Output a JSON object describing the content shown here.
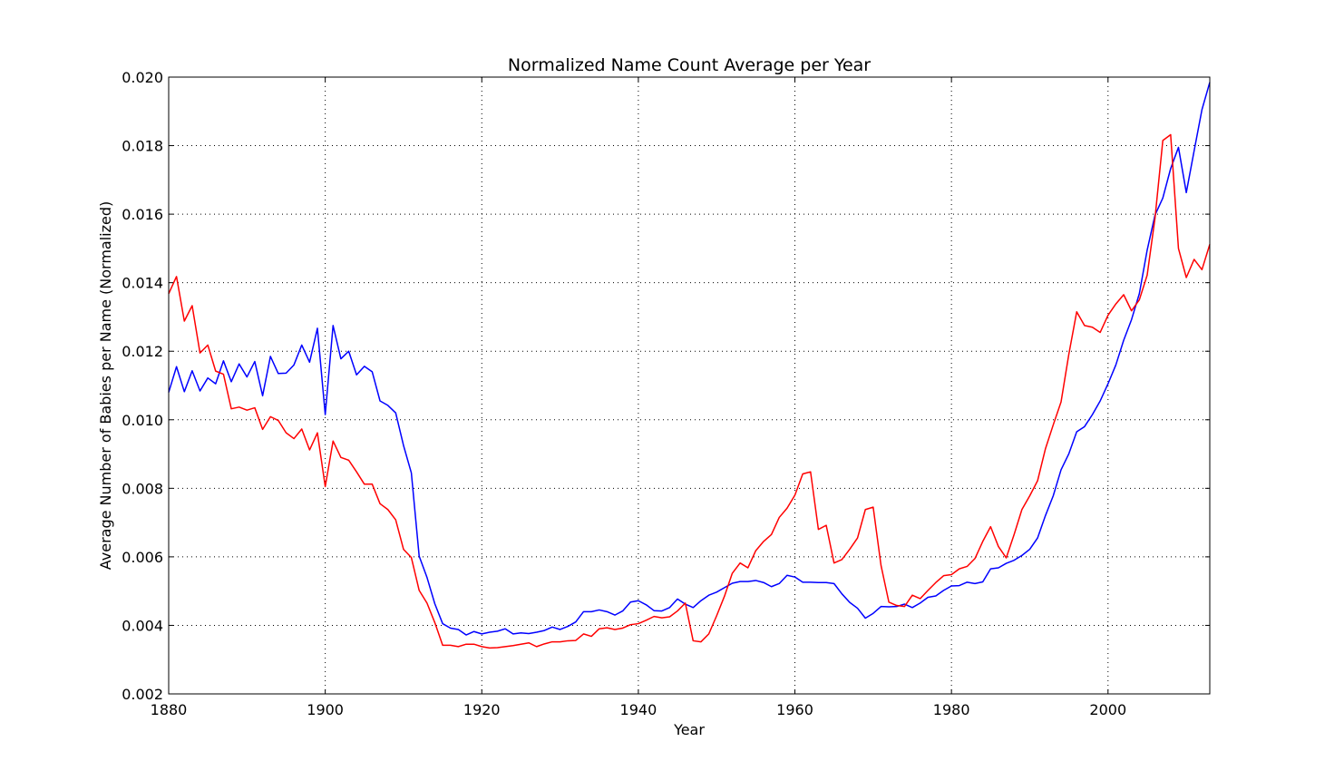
{
  "chart_data": {
    "type": "line",
    "title": "Normalized Name Count Average per Year",
    "xlabel": "Year",
    "ylabel": "Average Number of Babies per Name (Normalized)",
    "xlim": [
      1880,
      2013
    ],
    "ylim": [
      0.002,
      0.02
    ],
    "grid": true,
    "legend": "none",
    "x_ticks": [
      1880,
      1900,
      1920,
      1940,
      1960,
      1980,
      2000
    ],
    "x_tick_labels": [
      "1880",
      "1900",
      "1920",
      "1940",
      "1960",
      "1980",
      "2000"
    ],
    "y_ticks": [
      0.002,
      0.004,
      0.006,
      0.008,
      0.01,
      0.012,
      0.014,
      0.016,
      0.018,
      0.02
    ],
    "y_tick_labels": [
      "0.002",
      "0.004",
      "0.006",
      "0.008",
      "0.010",
      "0.012",
      "0.014",
      "0.016",
      "0.018",
      "0.020"
    ],
    "x": [
      1880,
      1881,
      1882,
      1883,
      1884,
      1885,
      1886,
      1887,
      1888,
      1889,
      1890,
      1891,
      1892,
      1893,
      1894,
      1895,
      1896,
      1897,
      1898,
      1899,
      1900,
      1901,
      1902,
      1903,
      1904,
      1905,
      1906,
      1907,
      1908,
      1909,
      1910,
      1911,
      1912,
      1913,
      1914,
      1915,
      1916,
      1917,
      1918,
      1919,
      1920,
      1921,
      1922,
      1923,
      1924,
      1925,
      1926,
      1927,
      1928,
      1929,
      1930,
      1931,
      1932,
      1933,
      1934,
      1935,
      1936,
      1937,
      1938,
      1939,
      1940,
      1941,
      1942,
      1943,
      1944,
      1945,
      1946,
      1947,
      1948,
      1949,
      1950,
      1951,
      1952,
      1953,
      1954,
      1955,
      1956,
      1957,
      1958,
      1959,
      1960,
      1961,
      1962,
      1963,
      1964,
      1965,
      1966,
      1967,
      1968,
      1969,
      1970,
      1971,
      1972,
      1973,
      1974,
      1975,
      1976,
      1977,
      1978,
      1979,
      1980,
      1981,
      1982,
      1983,
      1984,
      1985,
      1986,
      1987,
      1988,
      1989,
      1990,
      1991,
      1992,
      1993,
      1994,
      1995,
      1996,
      1997,
      1998,
      1999,
      2000,
      2001,
      2002,
      2003,
      2004,
      2005,
      2006,
      2007,
      2008,
      2009,
      2010,
      2011,
      2012,
      2013
    ],
    "series": [
      {
        "color": "#0000ff",
        "values": [
          0.0108,
          0.01155,
          0.01082,
          0.01143,
          0.01084,
          0.01122,
          0.01105,
          0.01172,
          0.01111,
          0.01163,
          0.01125,
          0.0117,
          0.0107,
          0.01185,
          0.01135,
          0.01136,
          0.0116,
          0.01218,
          0.01168,
          0.01267,
          0.01015,
          0.01275,
          0.01178,
          0.012,
          0.01131,
          0.01156,
          0.0114,
          0.01055,
          0.01042,
          0.0102,
          0.00925,
          0.00845,
          0.00602,
          0.0054,
          0.00463,
          0.00405,
          0.00392,
          0.00388,
          0.00372,
          0.00382,
          0.00375,
          0.0038,
          0.00383,
          0.0039,
          0.00375,
          0.00378,
          0.00376,
          0.0038,
          0.00385,
          0.00395,
          0.00388,
          0.00397,
          0.0041,
          0.0044,
          0.0044,
          0.00445,
          0.0044,
          0.0043,
          0.00442,
          0.00468,
          0.00472,
          0.0046,
          0.00443,
          0.00442,
          0.00452,
          0.00477,
          0.00462,
          0.00452,
          0.00472,
          0.00488,
          0.00497,
          0.0051,
          0.00523,
          0.00528,
          0.00528,
          0.00531,
          0.00525,
          0.00513,
          0.00522,
          0.00546,
          0.00541,
          0.00526,
          0.00526,
          0.00525,
          0.00525,
          0.00522,
          0.00492,
          0.00467,
          0.0045,
          0.00421,
          0.00435,
          0.00455,
          0.00454,
          0.00455,
          0.00462,
          0.00452,
          0.00465,
          0.00482,
          0.00486,
          0.00502,
          0.00515,
          0.00516,
          0.00526,
          0.00522,
          0.00527,
          0.00565,
          0.00568,
          0.00581,
          0.0059,
          0.00604,
          0.00622,
          0.00655,
          0.0072,
          0.00778,
          0.00854,
          0.00901,
          0.00965,
          0.0098,
          0.01015,
          0.01055,
          0.01105,
          0.0116,
          0.01232,
          0.01292,
          0.01368,
          0.01495,
          0.01597,
          0.01647,
          0.01733,
          0.01795,
          0.01663,
          0.01785,
          0.01905,
          0.01985
        ]
      },
      {
        "color": "#ff0000",
        "values": [
          0.01368,
          0.01418,
          0.01288,
          0.01333,
          0.01195,
          0.01218,
          0.01142,
          0.01133,
          0.01032,
          0.01037,
          0.01028,
          0.01035,
          0.00972,
          0.01009,
          0.00998,
          0.00962,
          0.00945,
          0.00973,
          0.00912,
          0.00962,
          0.00805,
          0.00938,
          0.0089,
          0.00882,
          0.00848,
          0.00812,
          0.00812,
          0.00755,
          0.00738,
          0.00708,
          0.00622,
          0.00598,
          0.00502,
          0.00465,
          0.00408,
          0.00342,
          0.00342,
          0.00338,
          0.00345,
          0.00345,
          0.00338,
          0.00334,
          0.00335,
          0.00338,
          0.00341,
          0.00345,
          0.00349,
          0.00338,
          0.00346,
          0.00352,
          0.00352,
          0.00355,
          0.00356,
          0.00375,
          0.00368,
          0.0039,
          0.00393,
          0.00388,
          0.00392,
          0.00402,
          0.00405,
          0.00415,
          0.00426,
          0.00422,
          0.00425,
          0.00442,
          0.00465,
          0.00355,
          0.00352,
          0.00375,
          0.00428,
          0.00485,
          0.00552,
          0.00582,
          0.00568,
          0.00618,
          0.00645,
          0.00665,
          0.00715,
          0.00742,
          0.0078,
          0.00842,
          0.00848,
          0.0068,
          0.00692,
          0.00582,
          0.00592,
          0.00622,
          0.00655,
          0.00738,
          0.00745,
          0.00575,
          0.00468,
          0.00458,
          0.00455,
          0.00488,
          0.00478,
          0.00502,
          0.00525,
          0.00545,
          0.00548,
          0.00565,
          0.00572,
          0.00595,
          0.00645,
          0.00688,
          0.0063,
          0.00597,
          0.00665,
          0.00738,
          0.00778,
          0.00822,
          0.00915,
          0.00985,
          0.01052,
          0.01192,
          0.01315,
          0.01275,
          0.0127,
          0.01255,
          0.01305,
          0.01338,
          0.01365,
          0.01318,
          0.0135,
          0.01422,
          0.01588,
          0.01815,
          0.01832,
          0.015,
          0.01415,
          0.01468,
          0.01438,
          0.01512
        ]
      }
    ]
  }
}
